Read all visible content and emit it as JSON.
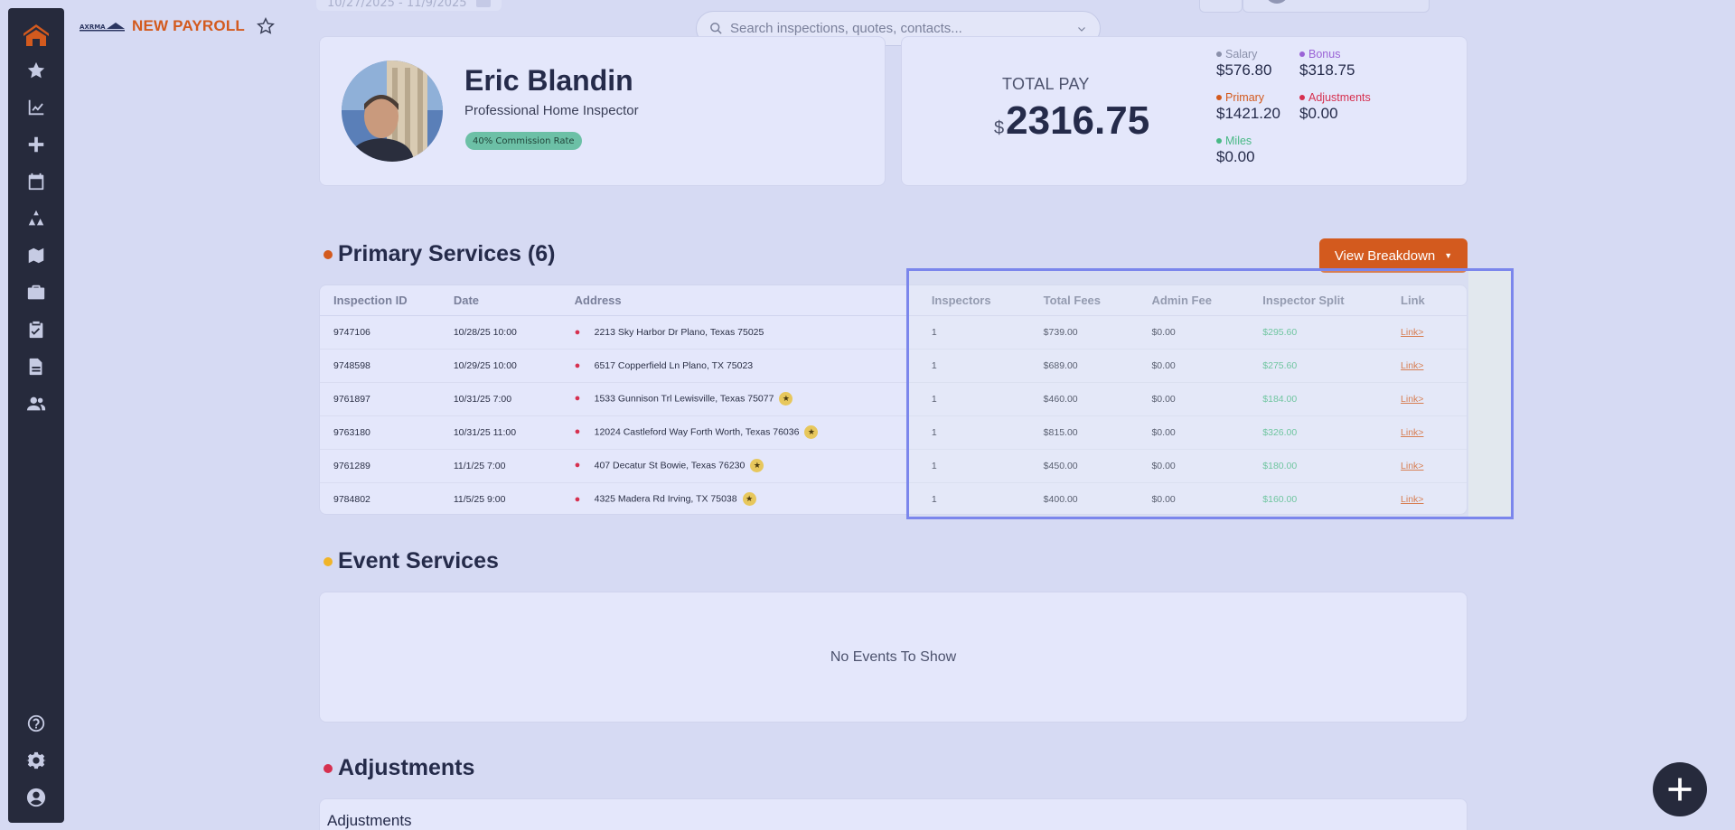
{
  "app": {
    "title": "NEW PAYROLL",
    "date_range": "10/27/2025 - 11/9/2025"
  },
  "search": {
    "placeholder": "Search inspections, quotes, contacts..."
  },
  "sidebar": {
    "icons": [
      "home-logo-icon",
      "star-icon",
      "chart-icon",
      "plus-icon",
      "calendar-icon",
      "tools-icon",
      "map-icon",
      "briefcase-icon",
      "clipboard-check-icon",
      "document-icon",
      "users-icon",
      "help-icon",
      "gear-icon",
      "user-circle-icon"
    ]
  },
  "profile": {
    "name": "Eric Blandin",
    "title": "Professional Home Inspector",
    "commission": "40% Commission Rate"
  },
  "pay": {
    "total_label": "TOTAL PAY",
    "currency": "$",
    "total": "2316.75",
    "breakdown": {
      "salary": {
        "label": "Salary",
        "value": "$576.80",
        "color": "#8a90aa"
      },
      "bonus": {
        "label": "Bonus",
        "value": "$318.75",
        "color": "#9a63d6"
      },
      "primary": {
        "label": "Primary",
        "value": "$1421.20",
        "color": "#d35a1e"
      },
      "adjustments": {
        "label": "Adjustments",
        "value": "$0.00",
        "color": "#d6304f"
      },
      "miles": {
        "label": "Miles",
        "value": "$0.00",
        "color": "#48b985"
      }
    }
  },
  "primary_services": {
    "title": "Primary Services (6)",
    "dot_color": "#d35a1e",
    "button": "View Breakdown",
    "columns": [
      "Inspection ID",
      "Date",
      "Address",
      "Inspectors",
      "Total Fees",
      "Admin Fee",
      "Inspector Split",
      "Link"
    ],
    "rows": [
      {
        "id": "9747106",
        "date": "10/28/25 10:00",
        "address": "2213 Sky Harbor Dr Plano, Texas 75025",
        "starred": false,
        "inspectors": "1",
        "total": "$739.00",
        "admin": "$0.00",
        "split": "$295.60",
        "link": "Link>"
      },
      {
        "id": "9748598",
        "date": "10/29/25 10:00",
        "address": "6517 Copperfield Ln Plano, TX 75023",
        "starred": false,
        "inspectors": "1",
        "total": "$689.00",
        "admin": "$0.00",
        "split": "$275.60",
        "link": "Link>"
      },
      {
        "id": "9761897",
        "date": "10/31/25 7:00",
        "address": "1533 Gunnison Trl Lewisville, Texas 75077",
        "starred": true,
        "inspectors": "1",
        "total": "$460.00",
        "admin": "$0.00",
        "split": "$184.00",
        "link": "Link>"
      },
      {
        "id": "9763180",
        "date": "10/31/25 11:00",
        "address": "12024 Castleford Way Forth Worth, Texas 76036",
        "starred": true,
        "inspectors": "1",
        "total": "$815.00",
        "admin": "$0.00",
        "split": "$326.00",
        "link": "Link>"
      },
      {
        "id": "9761289",
        "date": "11/1/25 7:00",
        "address": "407 Decatur St Bowie, Texas 76230",
        "starred": true,
        "inspectors": "1",
        "total": "$450.00",
        "admin": "$0.00",
        "split": "$180.00",
        "link": "Link>"
      },
      {
        "id": "9784802",
        "date": "11/5/25 9:00",
        "address": "4325 Madera Rd Irving, TX 75038",
        "starred": true,
        "inspectors": "1",
        "total": "$400.00",
        "admin": "$0.00",
        "split": "$160.00",
        "link": "Link>"
      }
    ]
  },
  "event_services": {
    "title": "Event Services",
    "dot_color": "#f0b429",
    "empty": "No Events To Show"
  },
  "adjustments": {
    "title": "Adjustments",
    "dot_color": "#d6304f",
    "card_title": "Adjustments"
  }
}
